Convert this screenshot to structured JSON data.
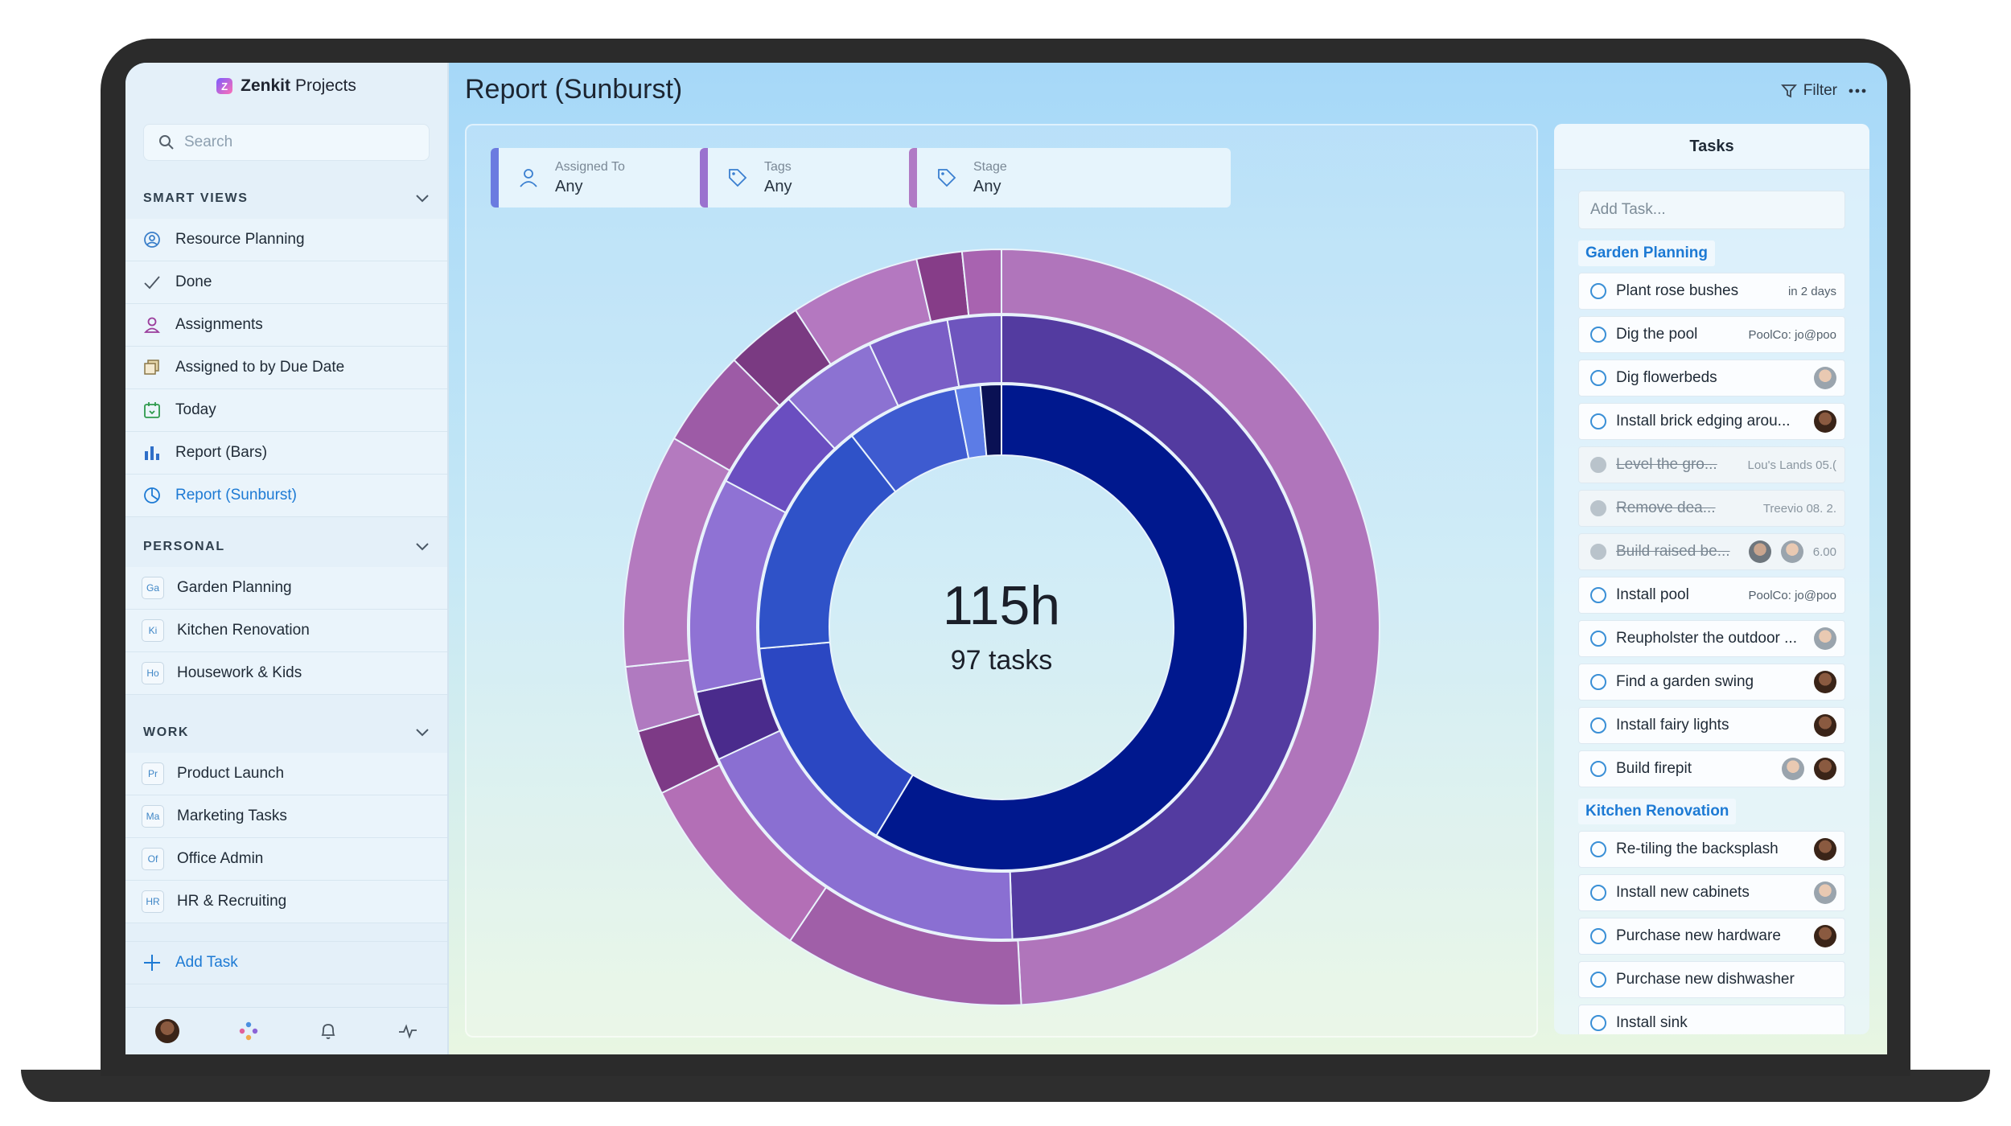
{
  "app": {
    "name_bold": "Zenkit",
    "name_rest": "Projects"
  },
  "search": {
    "placeholder": "Search"
  },
  "sections": {
    "smart_views": "SMART VIEWS",
    "personal": "PERSONAL",
    "work": "WORK"
  },
  "smart_views": [
    {
      "label": "Resource Planning",
      "icon": "resource-planning-icon"
    },
    {
      "label": "Done",
      "icon": "checkmark-icon"
    },
    {
      "label": "Assignments",
      "icon": "person-icon"
    },
    {
      "label": "Assigned to by Due Date",
      "icon": "stack-icon"
    },
    {
      "label": "Today",
      "icon": "calendar-today-icon"
    },
    {
      "label": "Report (Bars)",
      "icon": "bar-chart-icon"
    },
    {
      "label": "Report (Sunburst)",
      "icon": "sunburst-icon"
    }
  ],
  "personal": [
    {
      "abbr": "Ga",
      "label": "Garden Planning"
    },
    {
      "abbr": "Ki",
      "label": "Kitchen Renovation"
    },
    {
      "abbr": "Ho",
      "label": "Housework & Kids"
    }
  ],
  "work": [
    {
      "abbr": "Pr",
      "label": "Product Launch"
    },
    {
      "abbr": "Ma",
      "label": "Marketing Tasks"
    },
    {
      "abbr": "Of",
      "label": "Office Admin"
    },
    {
      "abbr": "HR",
      "label": "HR & Recruiting"
    }
  ],
  "sidebar_add_task": "Add Task",
  "header": {
    "title": "Report (Sunburst)",
    "filter_label": "Filter"
  },
  "filters": [
    {
      "label": "Assigned To",
      "value": "Any",
      "color": "#6b7be0"
    },
    {
      "label": "Tags",
      "value": "Any",
      "color": "#9a72cf"
    },
    {
      "label": "Stage",
      "value": "Any",
      "color": "#b07ac5"
    }
  ],
  "chart_data": {
    "type": "sunburst",
    "center_value": "115h",
    "center_label": "97 tasks",
    "colors": {
      "ring1_main": "#00188e",
      "ring2_main": "#533ba0",
      "ring3_main": "#b075bb"
    }
  },
  "tasks_panel": {
    "title": "Tasks",
    "add_placeholder": "Add Task...",
    "groups": [
      {
        "name": "Garden Planning",
        "tasks": [
          {
            "title": "Plant rose bushes",
            "meta": "in 2 days",
            "avatars": [],
            "done": false
          },
          {
            "title": "Dig the pool",
            "meta": "PoolCo: jo@poo",
            "avatars": [],
            "done": false
          },
          {
            "title": "Dig flowerbeds",
            "meta": "",
            "avatars": [
              "light"
            ],
            "done": false
          },
          {
            "title": "Install brick edging arou...",
            "meta": "",
            "avatars": [
              "dark"
            ],
            "done": false
          },
          {
            "title": "Level the gro...",
            "meta": "Lou's Lands  05.(",
            "avatars": [],
            "done": true
          },
          {
            "title": "Remove dea...",
            "meta": "Treevio   08.   2.",
            "avatars": [],
            "done": true
          },
          {
            "title": "Build raised be...",
            "meta": "6.00",
            "avatars": [
              "grey",
              "light"
            ],
            "done": true
          },
          {
            "title": "Install pool",
            "meta": "PoolCo: jo@poo",
            "avatars": [],
            "done": false
          },
          {
            "title": "Reupholster the outdoor ...",
            "meta": "",
            "avatars": [
              "light"
            ],
            "done": false
          },
          {
            "title": "Find a garden swing",
            "meta": "",
            "avatars": [
              "dark"
            ],
            "done": false
          },
          {
            "title": "Install fairy lights",
            "meta": "",
            "avatars": [
              "dark"
            ],
            "done": false
          },
          {
            "title": "Build firepit",
            "meta": "",
            "avatars": [
              "light",
              "dark"
            ],
            "done": false
          }
        ]
      },
      {
        "name": "Kitchen Renovation",
        "tasks": [
          {
            "title": "Re-tiling the backsplash",
            "meta": "",
            "avatars": [
              "dark"
            ],
            "done": false
          },
          {
            "title": "Install new cabinets",
            "meta": "",
            "avatars": [
              "light"
            ],
            "done": false
          },
          {
            "title": "Purchase new hardware",
            "meta": "",
            "avatars": [
              "dark"
            ],
            "done": false
          },
          {
            "title": "Purchase new dishwasher",
            "meta": "",
            "avatars": [],
            "done": false
          },
          {
            "title": "Install sink",
            "meta": "",
            "avatars": [],
            "done": false
          }
        ]
      }
    ]
  }
}
